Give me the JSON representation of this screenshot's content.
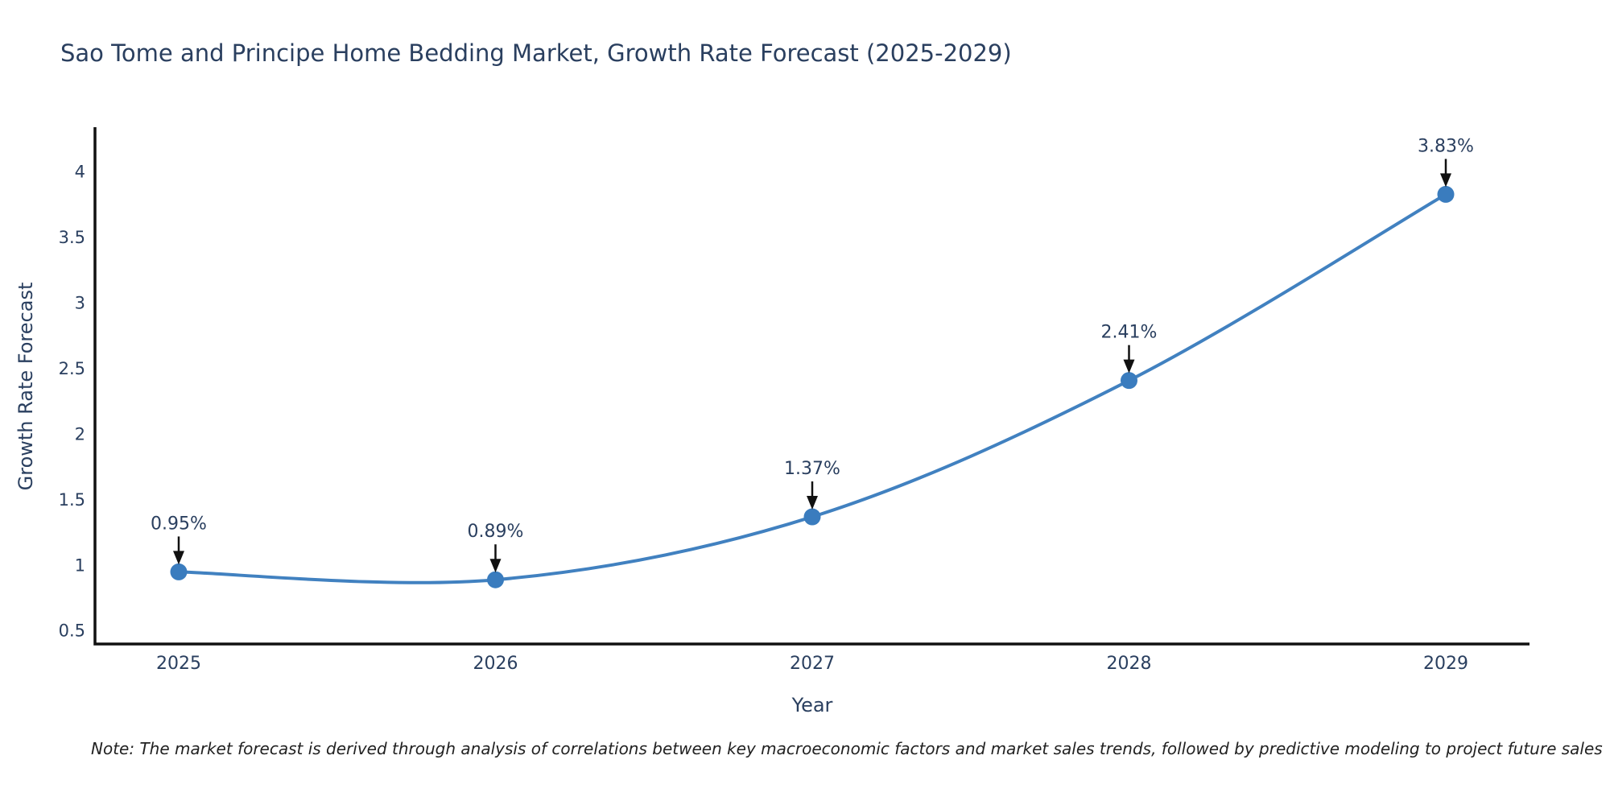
{
  "page": {
    "note": "Note: The market forecast is derived through analysis of correlations between key macroeconomic factors and market sales trends, followed by predictive modeling to project future sales"
  },
  "chart_data": {
    "type": "line",
    "title": "Sao Tome and Principe Home Bedding Market, Growth Rate Forecast (2025-2029)",
    "categories": [
      "2025",
      "2026",
      "2027",
      "2028",
      "2029"
    ],
    "series": [
      {
        "name": "Growth Rate Forecast",
        "values": [
          0.95,
          0.89,
          1.37,
          2.41,
          3.83
        ]
      }
    ],
    "point_labels": [
      "0.95%",
      "0.89%",
      "1.37%",
      "2.41%",
      "3.83%"
    ],
    "xlabel": "Year",
    "ylabel": "Growth Rate Forecast",
    "ylim": [
      0.4,
      4.33
    ],
    "yticks": [
      0.5,
      1,
      1.5,
      2,
      2.5,
      3,
      3.5,
      4
    ],
    "line_shape": "spline",
    "grid": false,
    "legend_position": "none",
    "markers": true,
    "annotation_arrows": true,
    "colors": {
      "line": "#4181c0",
      "marker": "#3a7cbe",
      "axis": "#111111",
      "text": "#2a3f5f",
      "arrow": "#111111",
      "background": "#ffffff",
      "note_text": "#222222"
    }
  }
}
